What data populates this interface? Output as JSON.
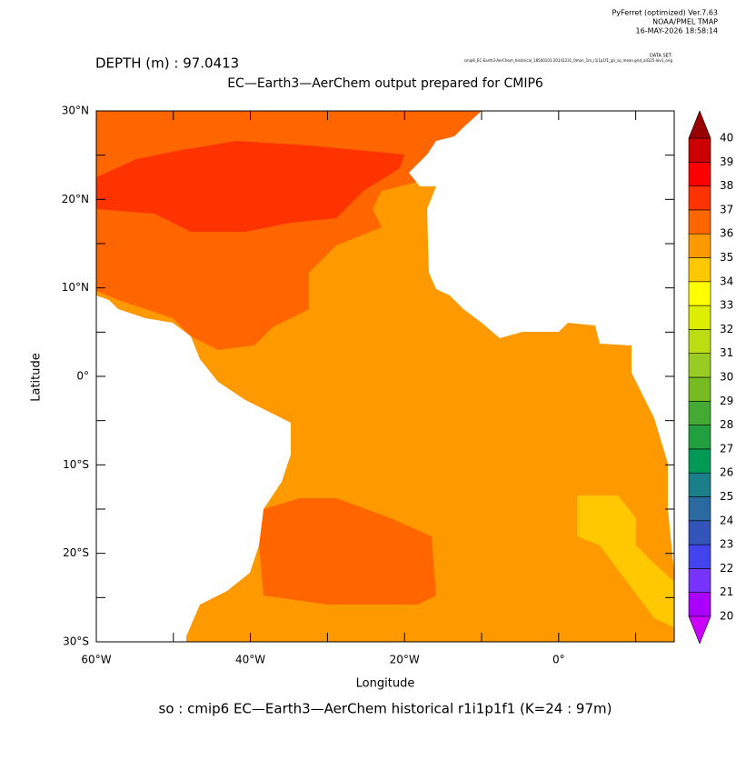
{
  "chart_data": {
    "type": "map",
    "version_lines": [
      "PyFerret (optimized) Ver.7.63",
      "NOAA/PMEL TMAP",
      "16-MAY-2026 18:58:14"
    ],
    "dataset_label": "DATA SET:",
    "dataset": "cmip6_EC-Earth3-AerChem_historical_18500101-20141231_0mon_1m_r1i1p1f1_gn_so_mean.grid_all325-lev1_orig",
    "subtitle": "DEPTH (m) : 97.0413",
    "title": "EC—Earth3—AerChem output prepared for CMIP6",
    "footer": "so : cmip6 EC—Earth3—AerChem historical r1i1p1f1   (K=24 : 97m)",
    "xlabel": "Longitude",
    "ylabel": "Latitude",
    "xlim": [
      -60,
      15
    ],
    "ylim": [
      -30,
      30
    ],
    "xticks": [
      {
        "value": -60,
        "label": "60°W"
      },
      {
        "value": -40,
        "label": "40°W"
      },
      {
        "value": -20,
        "label": "20°W"
      },
      {
        "value": 0,
        "label": "0°"
      }
    ],
    "xminor": [
      -50,
      -30,
      -10,
      10
    ],
    "yticks": [
      {
        "value": 30,
        "label": "30°N"
      },
      {
        "value": 20,
        "label": "20°N"
      },
      {
        "value": 10,
        "label": "10°N"
      },
      {
        "value": 0,
        "label": "0°"
      },
      {
        "value": -10,
        "label": "10°S"
      },
      {
        "value": -20,
        "label": "20°S"
      },
      {
        "value": -30,
        "label": "30°S"
      }
    ],
    "yminor": [
      25,
      15,
      5,
      -5,
      -15,
      -25
    ],
    "colorbar": {
      "levels": [
        20,
        21,
        22,
        23,
        24,
        25,
        26,
        27,
        28,
        29,
        30,
        31,
        32,
        33,
        34,
        35,
        36,
        37,
        38,
        39,
        40
      ],
      "colors": [
        "#aa00ff",
        "#7733ff",
        "#4444ee",
        "#3355bb",
        "#2a6aa0",
        "#1a7f88",
        "#009955",
        "#22a040",
        "#44aa33",
        "#77bb22",
        "#99cc22",
        "#bbdd11",
        "#ddee00",
        "#ffff00",
        "#ffc800",
        "#ff9900",
        "#ff6600",
        "#ff3300",
        "#ff0000",
        "#cc0000"
      ],
      "under_color": "#cc00ff",
      "over_color": "#990000"
    }
  }
}
